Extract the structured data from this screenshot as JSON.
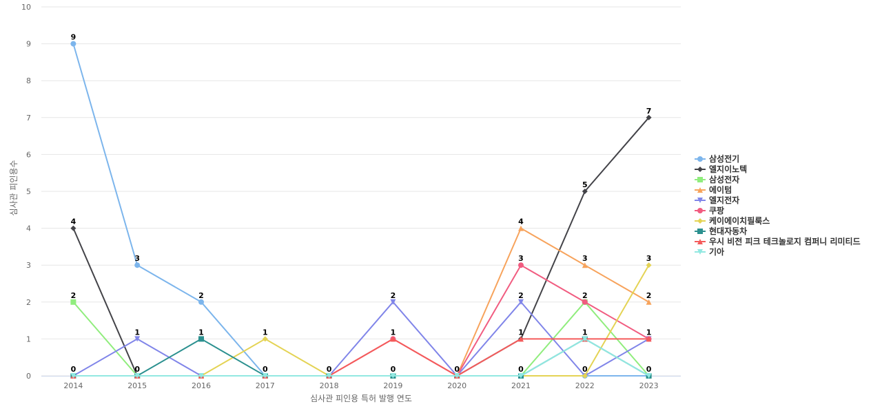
{
  "chart_data": {
    "type": "line",
    "x": [
      "2014",
      "2015",
      "2016",
      "2017",
      "2018",
      "2019",
      "2020",
      "2021",
      "2022",
      "2023"
    ],
    "xlabel": "심사관 피인용 특허 발행 연도",
    "ylabel": "심사관 피인용수",
    "ylim": [
      0,
      10
    ],
    "yticks": [
      0,
      1,
      2,
      3,
      4,
      5,
      6,
      7,
      8,
      9,
      10
    ],
    "grid": true,
    "legend_position": "right",
    "series": [
      {
        "name": "삼성전기",
        "color": "#7cb5ec",
        "marker": "circle",
        "values": [
          9,
          3,
          2,
          0,
          0,
          0,
          0,
          0,
          0,
          0
        ],
        "labels": [
          0,
          1,
          2
        ]
      },
      {
        "name": "엘지이노텍",
        "color": "#434348",
        "marker": "diamond",
        "values": [
          4,
          0,
          0,
          0,
          0,
          0,
          0,
          1,
          5,
          7
        ],
        "labels": [
          0,
          7,
          8,
          9
        ]
      },
      {
        "name": "삼성전자",
        "color": "#90ed7d",
        "marker": "square",
        "values": [
          2,
          0,
          0,
          0,
          0,
          0,
          0,
          0,
          2,
          0
        ],
        "labels": [
          0
        ]
      },
      {
        "name": "에이텀",
        "color": "#f7a35c",
        "marker": "triangle",
        "values": [
          0,
          0,
          0,
          0,
          0,
          0,
          0,
          4,
          3,
          2
        ],
        "labels": [
          7,
          8,
          9
        ]
      },
      {
        "name": "엘지전자",
        "color": "#8085e9",
        "marker": "triangle-down",
        "values": [
          0,
          1,
          0,
          0,
          0,
          2,
          0,
          2,
          0,
          1
        ],
        "labels": [
          1,
          5,
          7
        ]
      },
      {
        "name": "쿠팡",
        "color": "#f15c80",
        "marker": "circle",
        "values": [
          0,
          0,
          0,
          0,
          0,
          1,
          0,
          3,
          2,
          1
        ],
        "labels": [
          5,
          7,
          8,
          9
        ]
      },
      {
        "name": "케이에이치필룩스",
        "color": "#e4d354",
        "marker": "diamond",
        "values": [
          0,
          0,
          0,
          1,
          0,
          0,
          0,
          0,
          0,
          3
        ],
        "labels": [
          3,
          8,
          9
        ]
      },
      {
        "name": "현대자동차",
        "color": "#2b908f",
        "marker": "square",
        "values": [
          0,
          0,
          1,
          0,
          0,
          0,
          0,
          0,
          1,
          0
        ],
        "labels": [
          0,
          1,
          2,
          3,
          4,
          5,
          6,
          7,
          8,
          9
        ]
      },
      {
        "name": "우시 비전 피크 테크놀로지 컴퍼니 리미티드",
        "color": "#f45b5b",
        "marker": "triangle",
        "values": [
          0,
          0,
          0,
          0,
          0,
          1,
          0,
          1,
          1,
          1
        ],
        "labels": []
      },
      {
        "name": "기아",
        "color": "#91e8e1",
        "marker": "triangle-down",
        "values": [
          0,
          0,
          0,
          0,
          0,
          0,
          0,
          0,
          1,
          0
        ],
        "labels": []
      }
    ]
  }
}
